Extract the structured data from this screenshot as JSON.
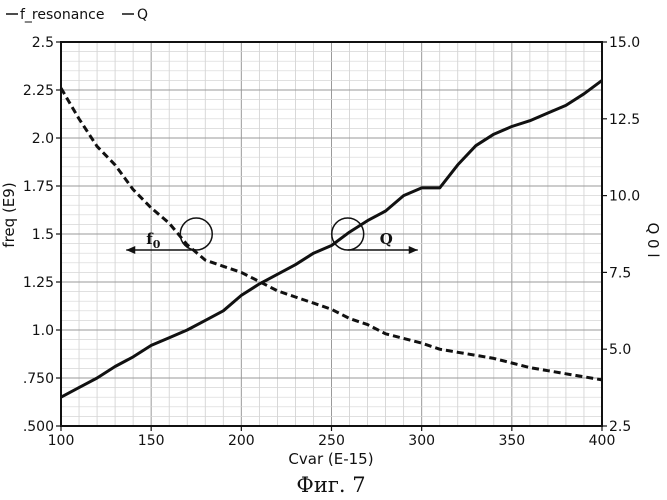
{
  "chart_data": {
    "type": "line",
    "title": "",
    "legend": [
      "f_resonance",
      "Q"
    ],
    "xlabel": "Cvar (E-15)",
    "ylabel_left": "freq (E9)",
    "ylabel_right": "Q 0 l",
    "xlim": [
      100,
      400
    ],
    "ylim_left": [
      0.5,
      2.5
    ],
    "ylim_right": [
      2.5,
      15.0
    ],
    "x_ticks": [
      "100",
      "150",
      "200",
      "250",
      "300",
      "350",
      "400"
    ],
    "y_left_ticks": [
      ".500",
      ".750",
      "1.0",
      "1.25",
      "1.5",
      "1.75",
      "2.0",
      "2.25",
      "2.5"
    ],
    "y_right_ticks": [
      "2.5",
      "5.0",
      "7.5",
      "10.0",
      "12.5",
      "15.0"
    ],
    "grid": true,
    "series": [
      {
        "name": "f_resonance",
        "axis": "left",
        "style": "solid",
        "x": [
          100,
          110,
          120,
          130,
          140,
          150,
          160,
          170,
          180,
          190,
          200,
          210,
          220,
          230,
          240,
          250,
          260,
          270,
          280,
          290,
          300,
          305,
          310,
          320,
          330,
          340,
          350,
          360,
          370,
          380,
          390,
          400
        ],
        "y": [
          0.65,
          0.7,
          0.75,
          0.81,
          0.86,
          0.92,
          0.96,
          1.0,
          1.05,
          1.1,
          1.18,
          1.24,
          1.29,
          1.34,
          1.4,
          1.44,
          1.51,
          1.57,
          1.62,
          1.7,
          1.74,
          1.74,
          1.74,
          1.86,
          1.96,
          2.02,
          2.06,
          2.09,
          2.13,
          2.17,
          2.23,
          2.3
        ]
      },
      {
        "name": "Q",
        "axis": "right",
        "style": "dashed",
        "x": [
          100,
          110,
          120,
          130,
          140,
          150,
          160,
          170,
          180,
          190,
          200,
          210,
          220,
          230,
          240,
          250,
          260,
          270,
          280,
          290,
          300,
          310,
          320,
          330,
          340,
          350,
          360,
          370,
          380,
          390,
          400
        ],
        "y": [
          13.5,
          12.5,
          11.6,
          11.0,
          10.2,
          9.6,
          9.1,
          8.4,
          7.9,
          7.7,
          7.5,
          7.2,
          6.9,
          6.7,
          6.5,
          6.3,
          6.0,
          5.8,
          5.5,
          5.35,
          5.2,
          5.0,
          4.9,
          4.8,
          4.7,
          4.55,
          4.4,
          4.3,
          4.2,
          4.1,
          4.0
        ]
      }
    ],
    "annotations": [
      {
        "label_main": "f",
        "label_sub": "0",
        "at_x": 175,
        "at_y_left": 1.5,
        "arrow": "left"
      },
      {
        "label_main": "Q",
        "label_sub": "",
        "at_x": 259,
        "at_y_left": 1.5,
        "arrow": "right"
      }
    ]
  },
  "caption": "Фиг. 7"
}
